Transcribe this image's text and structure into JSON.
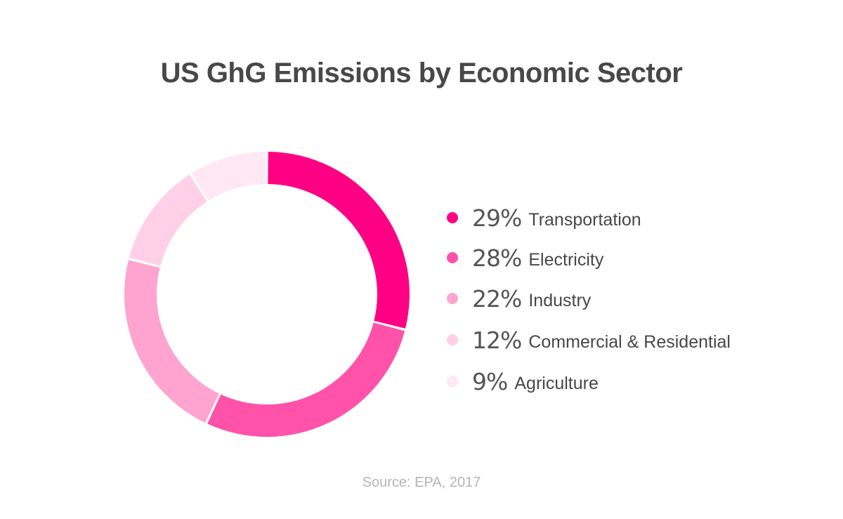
{
  "chart_data": {
    "type": "pie",
    "title": "US GhG Emissions by Economic Sector",
    "source": "Source: EPA, 2017",
    "slices": [
      {
        "label": "Transportation",
        "pct_text": "29%",
        "value": 29,
        "color": "#ff0084"
      },
      {
        "label": "Electricity",
        "pct_text": "28%",
        "value": 28,
        "color": "#ff52a8"
      },
      {
        "label": "Industry",
        "pct_text": "22%",
        "value": 22,
        "color": "#ffa3d0"
      },
      {
        "label": "Commercial & Residential",
        "pct_text": "12%",
        "value": 12,
        "color": "#ffd0e7"
      },
      {
        "label": "Agriculture",
        "pct_text": "9%",
        "value": 9,
        "color": "#ffe8f3"
      }
    ],
    "legend_position": "right"
  }
}
